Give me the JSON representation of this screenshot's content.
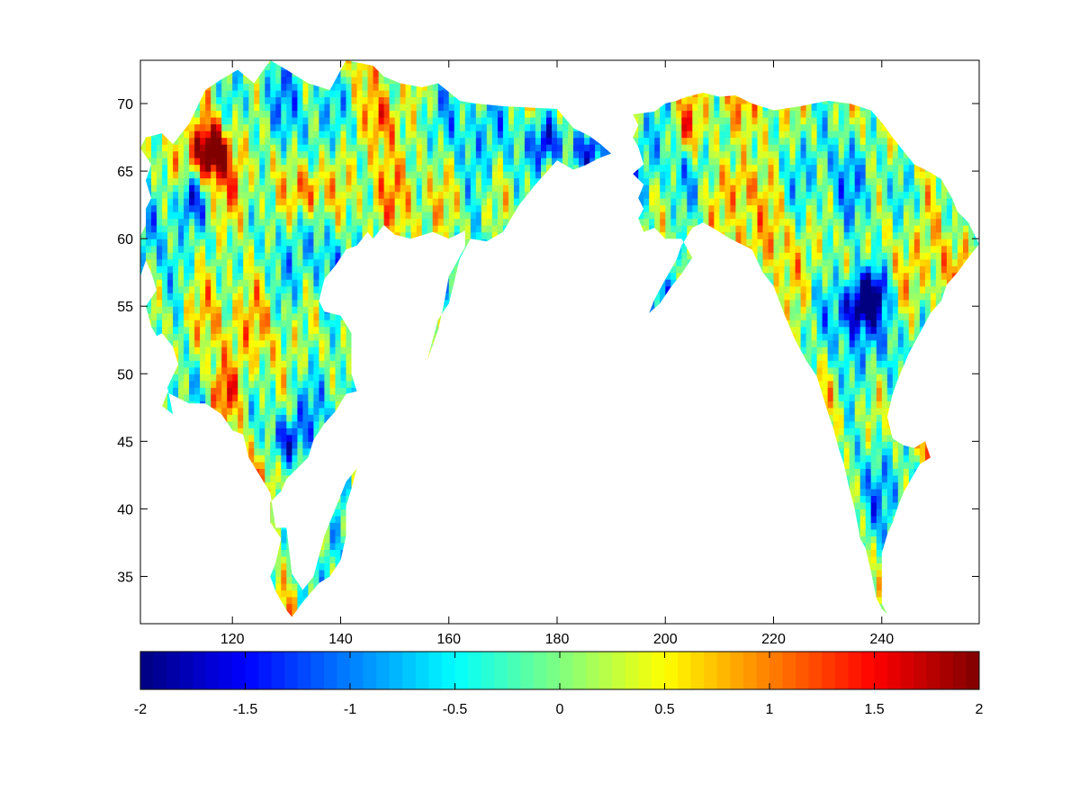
{
  "chart_data": {
    "type": "heatmap",
    "title": "",
    "xlabel": "",
    "ylabel": "",
    "xlim": [
      103,
      258
    ],
    "ylim": [
      31.5,
      73.2
    ],
    "x_ticks": [
      120,
      140,
      160,
      180,
      200,
      220,
      240
    ],
    "y_ticks": [
      35,
      40,
      45,
      50,
      55,
      60,
      65,
      70
    ],
    "colorbar": {
      "colormap": "jet",
      "range": [
        -2,
        2
      ],
      "ticks": [
        "-2",
        "-1.5",
        "-1",
        "-0.5",
        "0",
        "0.5",
        "1",
        "1.5",
        "2"
      ],
      "position": "bottom"
    },
    "grid": false,
    "regions": [
      {
        "name": "",
        "outline": [
          [
            104,
            67.5
          ],
          [
            107,
            67.8
          ],
          [
            109,
            67.0
          ],
          [
            112,
            68.5
          ],
          [
            115,
            71.0
          ],
          [
            118,
            71.8
          ],
          [
            121,
            72.5
          ],
          [
            124,
            71.5
          ],
          [
            127,
            73.2
          ],
          [
            130,
            72.5
          ],
          [
            134,
            71.5
          ],
          [
            138,
            71.0
          ],
          [
            141,
            73.2
          ],
          [
            146,
            72.8
          ],
          [
            148,
            72.0
          ],
          [
            151,
            71.5
          ],
          [
            155,
            71.2
          ],
          [
            158,
            71.5
          ],
          [
            162,
            70.2
          ],
          [
            165,
            70.0
          ],
          [
            170,
            69.8
          ],
          [
            175,
            69.7
          ],
          [
            180,
            69.6
          ],
          [
            183,
            68.2
          ],
          [
            186,
            67.6
          ],
          [
            188,
            67.0
          ],
          [
            190,
            66.3
          ],
          [
            188,
            66.0
          ],
          [
            185,
            65.4
          ],
          [
            183,
            65.1
          ],
          [
            180,
            65.8
          ],
          [
            176,
            64.0
          ],
          [
            173,
            62.5
          ],
          [
            170,
            60.5
          ],
          [
            167,
            59.8
          ],
          [
            164,
            60.0
          ],
          [
            162,
            58.5
          ],
          [
            161,
            56.8
          ],
          [
            160,
            55.2
          ],
          [
            158,
            54.0
          ],
          [
            157,
            52.5
          ],
          [
            156,
            51.0
          ],
          [
            158,
            53.2
          ],
          [
            159,
            55.0
          ],
          [
            160,
            57.2
          ],
          [
            163,
            59.4
          ],
          [
            163,
            60.6
          ],
          [
            160,
            60.0
          ],
          [
            157,
            60.5
          ],
          [
            153,
            60.0
          ],
          [
            150,
            60.3
          ],
          [
            148,
            61.0
          ],
          [
            146,
            60.0
          ],
          [
            145,
            60.5
          ],
          [
            143,
            59.5
          ],
          [
            141,
            59.2
          ],
          [
            139,
            58.0
          ],
          [
            137,
            57.0
          ],
          [
            136,
            55.4
          ],
          [
            137,
            54.6
          ],
          [
            140,
            54.3
          ],
          [
            142,
            53.0
          ],
          [
            142,
            50.0
          ],
          [
            143,
            48.7
          ],
          [
            141,
            48.5
          ],
          [
            139,
            47.2
          ],
          [
            137,
            46.3
          ],
          [
            135,
            45.1
          ],
          [
            134,
            43.8
          ],
          [
            132,
            43.0
          ],
          [
            130,
            42.2
          ],
          [
            129,
            41.3
          ],
          [
            127,
            40.5
          ],
          [
            127,
            39.0
          ],
          [
            129,
            37.8
          ],
          [
            128,
            36.0
          ],
          [
            127,
            35.0
          ],
          [
            128,
            33.9
          ],
          [
            130,
            32.5
          ],
          [
            131,
            32.0
          ],
          [
            133,
            33.1
          ],
          [
            136,
            34.5
          ],
          [
            138,
            35.0
          ],
          [
            140,
            36.2
          ],
          [
            141,
            38.0
          ],
          [
            141,
            40.2
          ],
          [
            142,
            41.5
          ],
          [
            143,
            43.0
          ],
          [
            141,
            42.0
          ],
          [
            139,
            40.0
          ],
          [
            137,
            38.0
          ],
          [
            135,
            35.0
          ],
          [
            133,
            34.0
          ],
          [
            131,
            35.2
          ],
          [
            130,
            38.6
          ],
          [
            128,
            38.6
          ],
          [
            127,
            41.2
          ],
          [
            125,
            42.5
          ],
          [
            123,
            43.8
          ],
          [
            122,
            45.5
          ],
          [
            120,
            45.8
          ],
          [
            118,
            47.0
          ],
          [
            115,
            47.8
          ],
          [
            112,
            47.8
          ],
          [
            110,
            48.2
          ],
          [
            108,
            48.6
          ],
          [
            107,
            47.6
          ],
          [
            109,
            47.0
          ],
          [
            108,
            49.0
          ],
          [
            110,
            50.7
          ],
          [
            109,
            52.0
          ],
          [
            107,
            53.0
          ],
          [
            106,
            52.8
          ],
          [
            105,
            53.5
          ],
          [
            104,
            55.0
          ],
          [
            106,
            56.2
          ],
          [
            105,
            57.5
          ],
          [
            104,
            58.4
          ],
          [
            103,
            57.2
          ],
          [
            103,
            60.2
          ],
          [
            104,
            61.0
          ],
          [
            104,
            62.2
          ],
          [
            105,
            63.0
          ],
          [
            104,
            64.3
          ],
          [
            105,
            65.5
          ],
          [
            103,
            66.7
          ],
          [
            104,
            67.5
          ]
        ]
      },
      {
        "name": "",
        "outline": [
          [
            194,
            69.2
          ],
          [
            198,
            69.4
          ],
          [
            200,
            70.0
          ],
          [
            202,
            70.2
          ],
          [
            204,
            70.5
          ],
          [
            207,
            70.8
          ],
          [
            210,
            70.5
          ],
          [
            213,
            70.6
          ],
          [
            216,
            70.0
          ],
          [
            220,
            69.5
          ],
          [
            225,
            69.8
          ],
          [
            230,
            70.2
          ],
          [
            234,
            70.0
          ],
          [
            238,
            69.5
          ],
          [
            240,
            68.6
          ],
          [
            242,
            67.5
          ],
          [
            244,
            66.5
          ],
          [
            246,
            65.5
          ],
          [
            249,
            64.9
          ],
          [
            251,
            64.4
          ],
          [
            253,
            63.0
          ],
          [
            254,
            62.0
          ],
          [
            256,
            61.2
          ],
          [
            257,
            60.4
          ],
          [
            258,
            59.6
          ],
          [
            256,
            58.6
          ],
          [
            254,
            57.5
          ],
          [
            252,
            56.6
          ],
          [
            251,
            55.4
          ],
          [
            249,
            54.5
          ],
          [
            247,
            53.0
          ],
          [
            245,
            51.5
          ],
          [
            243,
            49.6
          ],
          [
            242,
            48.5
          ],
          [
            241,
            46.8
          ],
          [
            242,
            45.2
          ],
          [
            244,
            44.7
          ],
          [
            246,
            44.5
          ],
          [
            248,
            45.0
          ],
          [
            249,
            43.8
          ],
          [
            247,
            43.3
          ],
          [
            246,
            42.6
          ],
          [
            244,
            41.2
          ],
          [
            243,
            40.2
          ],
          [
            242,
            39.0
          ],
          [
            241,
            38.1
          ],
          [
            240,
            36.7
          ],
          [
            240,
            35.0
          ],
          [
            240,
            33.0
          ],
          [
            241,
            32.2
          ],
          [
            240,
            32.6
          ],
          [
            239,
            33.4
          ],
          [
            238,
            35.4
          ],
          [
            237,
            37.1
          ],
          [
            236,
            37.8
          ],
          [
            235,
            40.0
          ],
          [
            234,
            41.5
          ],
          [
            233,
            43.3
          ],
          [
            232,
            44.5
          ],
          [
            231,
            46.0
          ],
          [
            230,
            47.2
          ],
          [
            229,
            48.5
          ],
          [
            228,
            49.8
          ],
          [
            226,
            51.0
          ],
          [
            224,
            52.5
          ],
          [
            222,
            54.4
          ],
          [
            220,
            56.5
          ],
          [
            218,
            57.5
          ],
          [
            216,
            59.2
          ],
          [
            212,
            60.0
          ],
          [
            210,
            60.5
          ],
          [
            207,
            61.2
          ],
          [
            205,
            60.8
          ],
          [
            203,
            59.5
          ],
          [
            202,
            58.4
          ],
          [
            200,
            57.0
          ],
          [
            198,
            55.5
          ],
          [
            197,
            54.5
          ],
          [
            199,
            55.2
          ],
          [
            201,
            56.4
          ],
          [
            203,
            57.4
          ],
          [
            205,
            58.6
          ],
          [
            203,
            60.0
          ],
          [
            200,
            60.0
          ],
          [
            198,
            60.8
          ],
          [
            196,
            60.5
          ],
          [
            195,
            61.5
          ],
          [
            196,
            62.2
          ],
          [
            195,
            63.0
          ],
          [
            196,
            64.0
          ],
          [
            194,
            64.8
          ],
          [
            196,
            65.5
          ],
          [
            195,
            66.8
          ],
          [
            194,
            67.5
          ],
          [
            195,
            68.4
          ],
          [
            194,
            69.2
          ]
        ]
      }
    ]
  }
}
